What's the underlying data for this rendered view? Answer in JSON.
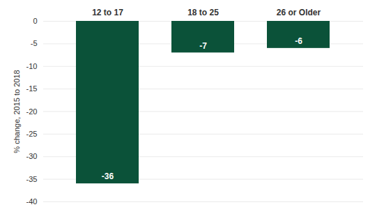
{
  "chart_data": {
    "type": "bar",
    "ylabel": "% change, 2015 to 2018",
    "categories": [
      "12 to 17",
      "18 to 25",
      "26 or Older"
    ],
    "values": [
      -36,
      -7,
      -6
    ],
    "color": "#0b5239",
    "ylim": [
      -40,
      0
    ],
    "yticks": [
      -40,
      -35,
      -30,
      -25,
      -20,
      -15,
      -10,
      -5,
      0
    ],
    "grid": true,
    "data_labels": true
  }
}
